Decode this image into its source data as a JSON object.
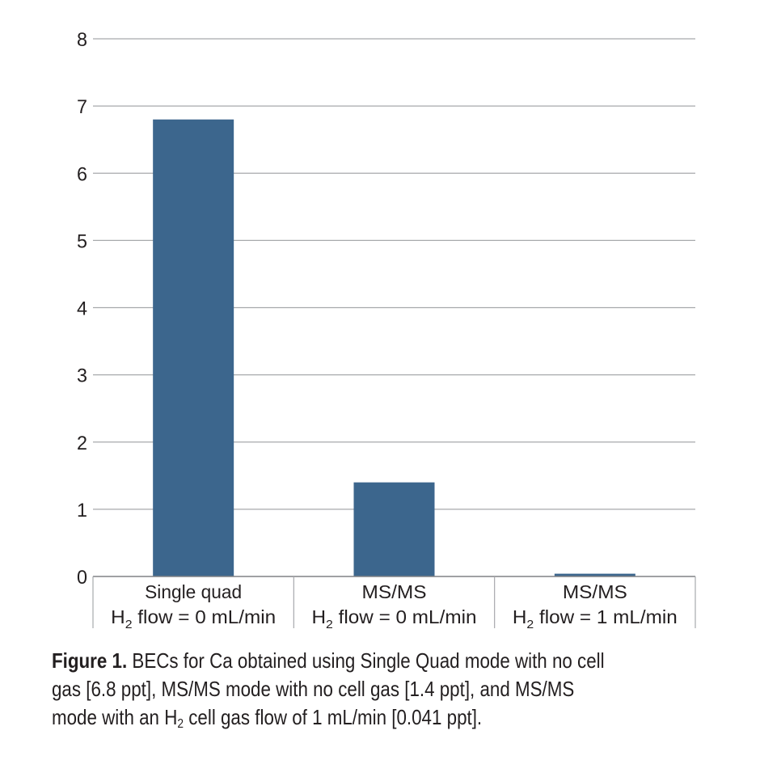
{
  "chart_data": {
    "type": "bar",
    "categories": [
      {
        "line1": "Single quad",
        "line2_pre": "H",
        "line2_sub": "2",
        "line2_post": " flow = 0 mL/min"
      },
      {
        "line1": "MS/MS",
        "line2_pre": "H",
        "line2_sub": "2",
        "line2_post": " flow = 0 mL/min"
      },
      {
        "line1": "MS/MS",
        "line2_pre": "H",
        "line2_sub": "2",
        "line2_post": " flow = 1 mL/min"
      }
    ],
    "values": [
      6.8,
      1.4,
      0.041
    ],
    "ylim": [
      0,
      8
    ],
    "yticks": [
      "0",
      "1",
      "2",
      "3",
      "4",
      "5",
      "6",
      "7",
      "8"
    ],
    "grid": true,
    "bar_color": "#3c668d",
    "grid_color": "#a7a9ac"
  },
  "caption": {
    "label": "Figure 1.",
    "line1": " BECs for Ca obtained using Single Quad mode with no cell",
    "line2": "gas [6.8 ppt], MS/MS mode with no cell gas [1.4 ppt], and MS/MS",
    "line3_pre": "mode with an H",
    "line3_sub": "2",
    "line3_post": " cell gas flow of 1 mL/min [0.041 ppt]."
  }
}
